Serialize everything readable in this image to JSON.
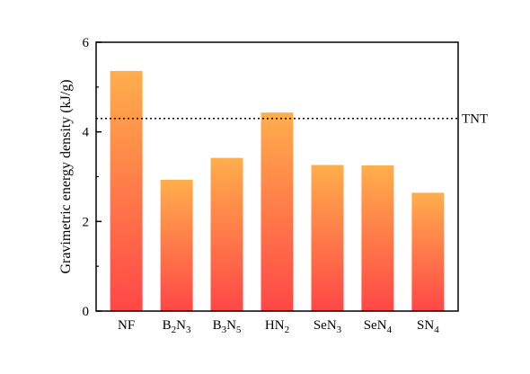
{
  "chart_data": {
    "type": "bar",
    "categories": [
      {
        "main": "NF",
        "sub": []
      },
      {
        "main": "B",
        "sub": [
          "2",
          "N",
          "3"
        ]
      },
      {
        "main": "B",
        "sub": [
          "3",
          "N",
          "5"
        ]
      },
      {
        "main": "HN",
        "sub": [
          "2"
        ]
      },
      {
        "main": "SeN",
        "sub": [
          "3"
        ]
      },
      {
        "main": "SeN",
        "sub": [
          "4"
        ]
      },
      {
        "main": "SN",
        "sub": [
          "4"
        ]
      }
    ],
    "values": [
      5.36,
      2.93,
      3.42,
      4.43,
      3.26,
      3.25,
      2.64
    ],
    "ylabel": "Gravimetric energy density (kJ/g)",
    "ylim": [
      0,
      6
    ],
    "yticks": [
      "0",
      "2",
      "4",
      "6"
    ],
    "reference_line": {
      "value": 4.3,
      "label": "TNT",
      "style": "dotted"
    },
    "bar_gradient": {
      "top": "#FFAE4C",
      "bottom": "#FF4747"
    },
    "grid": false
  }
}
